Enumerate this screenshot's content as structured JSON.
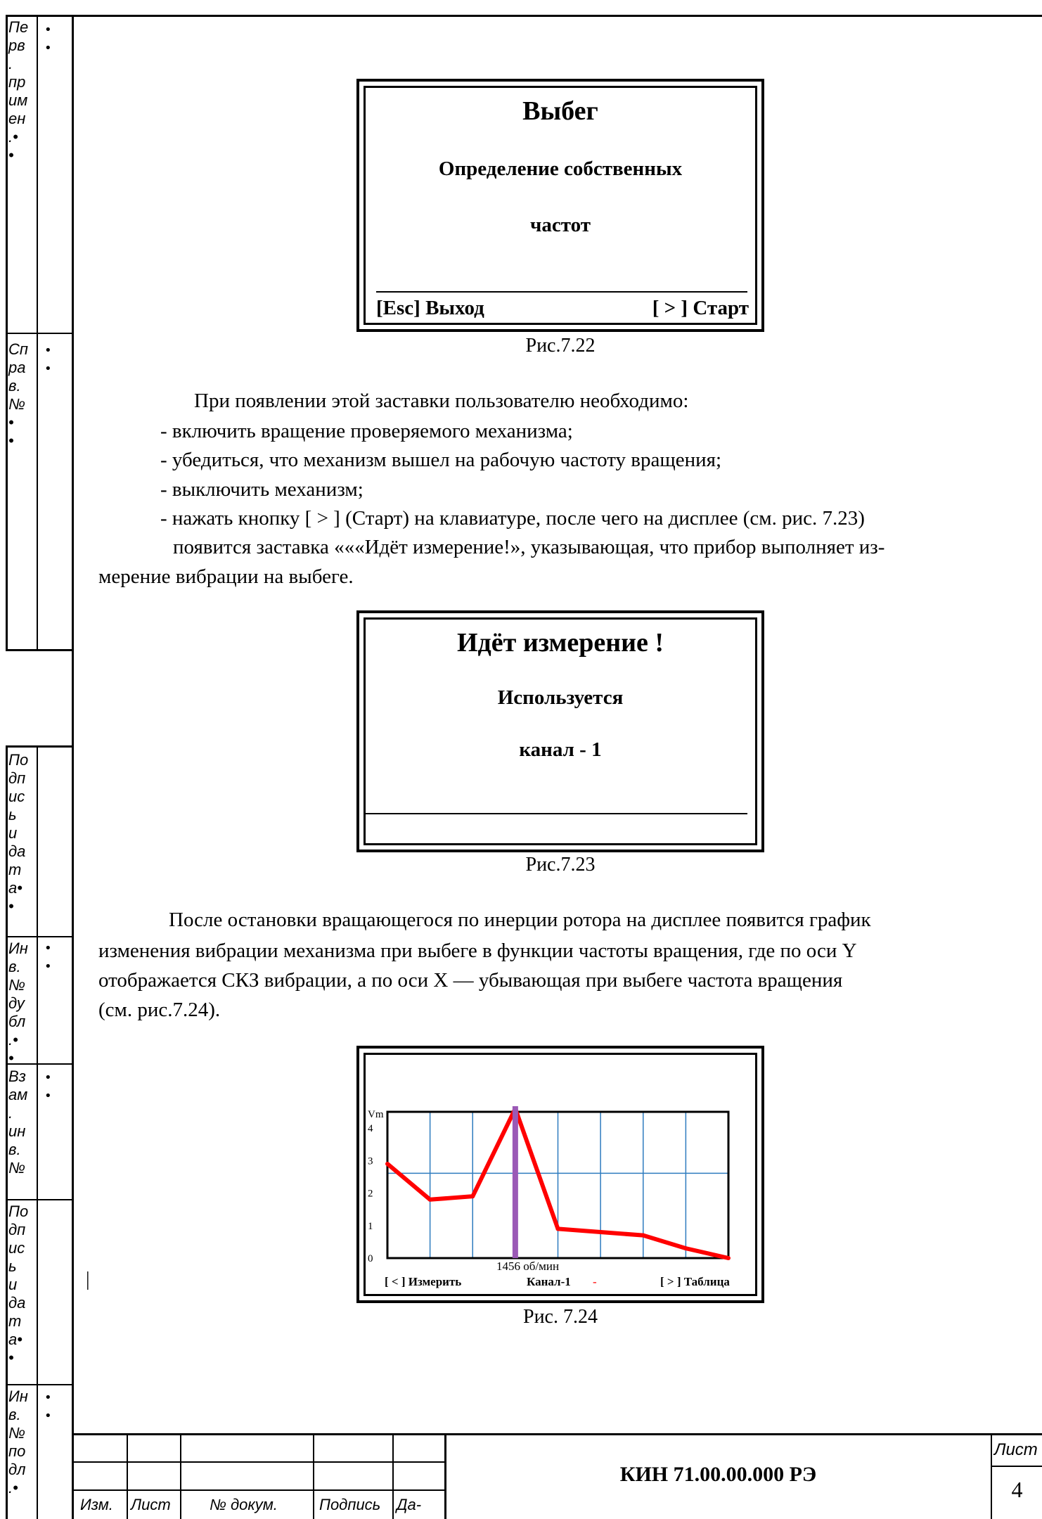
{
  "stamp_column": {
    "block1_text": "Пе\nрв\n.\nпр\nим\nен\n.•\n•",
    "block1_dots": "•\n•",
    "block2_text": "Сп\nра\nв.\n№\n•\n•",
    "block2_dots": "•\n•",
    "block3_text": "По\nдп\nис\nь\nи\nда\nт\nа•\n•",
    "block4_text": "Ин\nв.\n№\nду\nбл\n.•\n•",
    "block4_dots": "•\n•",
    "block5_text": "Вз\nам\n.\nин\nв.\n№",
    "block5_dots": "•\n•",
    "block6_text": "По\nдп\nис\nь\nи\nда\nт\nа•\n•",
    "block7_text": "Ин\nв.\n№\nпо\nдл\n.•",
    "block7_dots": "•\n•"
  },
  "fig22": {
    "title": "Выбег",
    "line1": "Определение собственных",
    "line2": "частот",
    "foot_left": "[Esc] Выход",
    "foot_right": "[ > ] Старт",
    "caption": "Рис.7.22"
  },
  "paragraph1": {
    "intro": "При появлении этой заставки пользователю необходимо:",
    "item1": "- включить вращение проверяемого механизма;",
    "item2": "- убедиться, что механизм вышел на рабочую частоту вращения;",
    "item3": "- выключить механизм;",
    "item4": "- нажать кнопку [ > ] (Старт) на клавиатуре,  после чего на дисплее (см. рис. 7.23)",
    "item5a": "появится заставка «««Идёт измерение!», указывающая, что прибор выполняет из-",
    "item5b": "мерение вибрации на выбеге."
  },
  "fig23": {
    "title": "Идёт измерение !",
    "line1": "Используется",
    "line2": "канал - 1",
    "caption": "Рис.7.23"
  },
  "paragraph2": {
    "l1": "После остановки вращающегося по инерции ротора на дисплее появится график",
    "l2": "изменения вибрации механизма при выбеге в функции частоты вращения, где по оси Y",
    "l3": "отображается СКЗ вибрации, а по оси X — убывающая при выбеге частота вращения",
    "l4": "(см. рис.7.24)."
  },
  "fig24": {
    "caption": "Рис. 7.24",
    "cursor_label": "1456 об/мин",
    "foot_left": "[ < ] Измерить",
    "foot_mid": "Канал-1",
    "foot_mid_mark": "-",
    "foot_right": "[ > ]  Таблица",
    "colors": {
      "curve": "#ff0000",
      "cursor": "#9b59b6",
      "grid": "#2e7bbf"
    }
  },
  "chart_data": {
    "type": "line",
    "title": "",
    "ylabel": "Vm",
    "xlabel": "",
    "yticks": [
      "0",
      "1",
      "2",
      "3",
      "4"
    ],
    "ylim": [
      0,
      4.5
    ],
    "grid": true,
    "cursor_x_index": 3,
    "series": [
      {
        "values": [
          2.9,
          1.8,
          1.9,
          4.6,
          0.9,
          0.8,
          0.7,
          0.3,
          0.0
        ]
      }
    ]
  },
  "pipe_mark": "|",
  "title_block": {
    "code": "КИН 71.00.00.000  РЭ",
    "sheet_label": "Лист",
    "sheet_number": "4",
    "col_izm": "Изм.",
    "col_list": "Лист",
    "col_doc": "№ докум.",
    "col_sign": "Подпись",
    "col_date": "Да-"
  }
}
